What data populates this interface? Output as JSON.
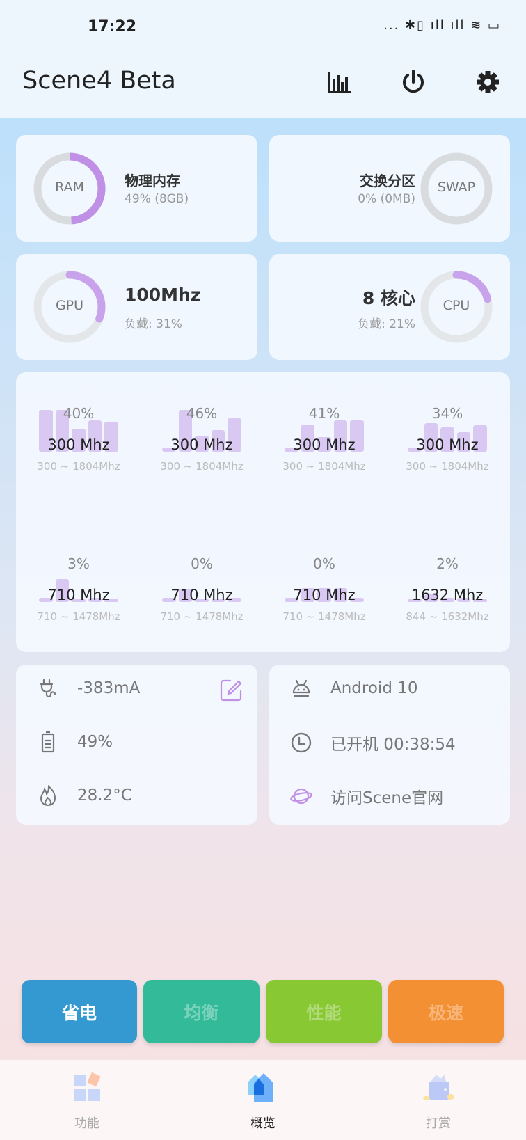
{
  "status_bar": {
    "time": "17:22",
    "icons": "... ✱▯ ıll ıll ≋ ▭"
  },
  "header": {
    "title": "Scene4 Beta",
    "icons": [
      "bar-chart-icon",
      "power-icon",
      "gear-icon"
    ]
  },
  "colors": {
    "accent": "#c090e6",
    "track": "#d9dcdf",
    "powersave": "#3399d0",
    "balance": "#33bb99",
    "performance": "#88c833",
    "fast": "#f39033"
  },
  "memory": {
    "ram": {
      "label": "RAM",
      "title": "物理内存",
      "detail": "49% (8GB)",
      "percent": 49
    },
    "swap": {
      "label": "SWAP",
      "title": "交换分区",
      "detail": "0% (0MB)",
      "percent": 0
    }
  },
  "gpu": {
    "label": "GPU",
    "title": "100Mhz",
    "detail": "负载: 31%",
    "percent": 31
  },
  "cpu": {
    "label": "CPU",
    "title": "8 核心",
    "detail": "负载: 21%",
    "percent": 21
  },
  "cores": [
    {
      "load": "40%",
      "freq": "300 Mhz",
      "range": "300 ~ 1804Mhz",
      "history": [
        100,
        100,
        55,
        75,
        72
      ]
    },
    {
      "load": "46%",
      "freq": "300 Mhz",
      "range": "300 ~ 1804Mhz",
      "history": [
        10,
        100,
        38,
        52,
        80
      ]
    },
    {
      "load": "41%",
      "freq": "300 Mhz",
      "range": "300 ~ 1804Mhz",
      "history": [
        10,
        65,
        35,
        75,
        75
      ]
    },
    {
      "load": "34%",
      "freq": "300 Mhz",
      "range": "300 ~ 1804Mhz",
      "history": [
        10,
        68,
        58,
        47,
        63
      ]
    },
    {
      "load": "3%",
      "freq": "710 Mhz",
      "range": "710 ~ 1478Mhz",
      "history": [
        10,
        55,
        3,
        10,
        3
      ]
    },
    {
      "load": "0%",
      "freq": "710 Mhz",
      "range": "710 ~ 1478Mhz",
      "history": [
        10,
        32,
        8,
        8,
        10
      ]
    },
    {
      "load": "0%",
      "freq": "710 Mhz",
      "range": "710 ~ 1478Mhz",
      "history": [
        10,
        34,
        34,
        34,
        10
      ]
    },
    {
      "load": "2%",
      "freq": "1632 Mhz",
      "range": "844 ~ 1632Mhz",
      "history": [
        8,
        18,
        10,
        10,
        3
      ]
    }
  ],
  "battery": {
    "current": "-383mA",
    "level": "49%",
    "temperature": "28.2°C"
  },
  "system": {
    "android": "Android 10",
    "uptime": "已开机  00:38:54",
    "website": "访问Scene官网"
  },
  "modes": [
    {
      "label": "省电",
      "active": true
    },
    {
      "label": "均衡"
    },
    {
      "label": "性能"
    },
    {
      "label": "极速"
    }
  ],
  "nav": [
    {
      "label": "功能"
    },
    {
      "label": "概览",
      "active": true
    },
    {
      "label": "打赏"
    }
  ]
}
